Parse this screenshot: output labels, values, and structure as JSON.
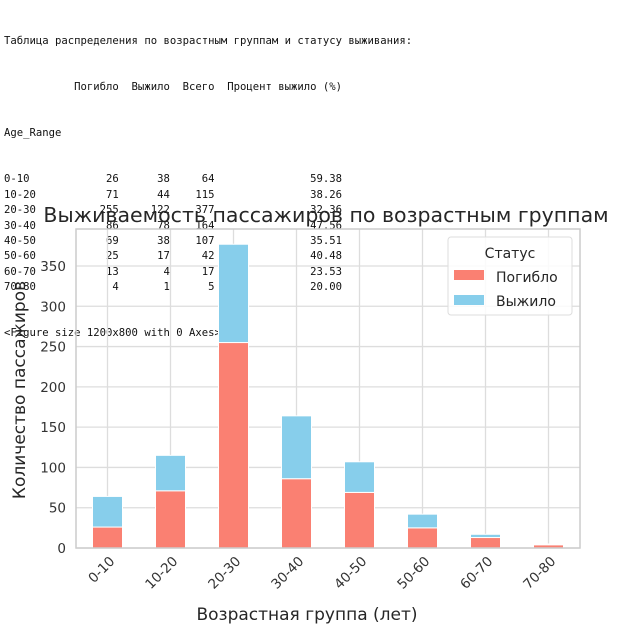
{
  "console": {
    "header": "Таблица распределения по возрастным группам и статусу выживания:",
    "columns": [
      "Погибло",
      "Выжило",
      "Всего",
      "Процент выжило (%)"
    ],
    "index_name": "Age_Range",
    "rows": [
      {
        "label": "0-10",
        "died": "26",
        "survived": "38",
        "total": "64",
        "pct": "59.38"
      },
      {
        "label": "10-20",
        "died": "71",
        "survived": "44",
        "total": "115",
        "pct": "38.26"
      },
      {
        "label": "20-30",
        "died": "255",
        "survived": "122",
        "total": "377",
        "pct": "32.36"
      },
      {
        "label": "30-40",
        "died": "86",
        "survived": "78",
        "total": "164",
        "pct": "47.56"
      },
      {
        "label": "40-50",
        "died": "69",
        "survived": "38",
        "total": "107",
        "pct": "35.51"
      },
      {
        "label": "50-60",
        "died": "25",
        "survived": "17",
        "total": "42",
        "pct": "40.48"
      },
      {
        "label": "60-70",
        "died": "13",
        "survived": "4",
        "total": "17",
        "pct": "23.53"
      },
      {
        "label": "70-80",
        "died": "4",
        "survived": "1",
        "total": "5",
        "pct": "20.00"
      }
    ],
    "figure_note": "<Figure size 1200x800 with 0 Axes>"
  },
  "chart_data": {
    "type": "bar",
    "stacked": true,
    "title": "Выживаемость пассажиров по возрастным группам",
    "xlabel": "Возрастная группа (лет)",
    "ylabel": "Количество пассажиров",
    "categories": [
      "0-10",
      "10-20",
      "20-30",
      "30-40",
      "40-50",
      "50-60",
      "60-70",
      "70-80"
    ],
    "series": [
      {
        "name": "Погибло",
        "color": "#fa8072",
        "values": [
          26,
          71,
          255,
          86,
          69,
          25,
          13,
          4
        ]
      },
      {
        "name": "Выжило",
        "color": "#87ceeb",
        "values": [
          38,
          44,
          122,
          78,
          38,
          17,
          4,
          1
        ]
      }
    ],
    "yticks": [
      0,
      50,
      100,
      150,
      200,
      250,
      300,
      350
    ],
    "ylim": [
      0,
      396
    ],
    "grid": true,
    "legend": {
      "title": "Статус",
      "position": "upper right"
    },
    "xtick_rotation": 45
  }
}
